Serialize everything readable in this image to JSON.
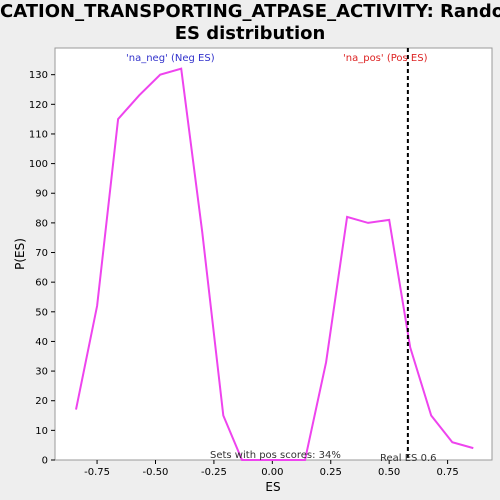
{
  "title_line1": "CATION_TRANSPORTING_ATPASE_ACTIVITY: Random",
  "title_line2": "ES distribution",
  "colors": {
    "line": "#ee44ee",
    "neg_label": "#3333cc",
    "pos_label": "#dd2222",
    "real_es_line": "#000000"
  },
  "chart_data": {
    "type": "line",
    "title": "CATION_TRANSPORTING_ATPASE_ACTIVITY: Random ES distribution",
    "xlabel": "ES",
    "ylabel": "P(ES)",
    "xlim": [
      -0.93,
      0.94
    ],
    "ylim": [
      0,
      139
    ],
    "x_ticks": [
      -0.75,
      -0.5,
      -0.25,
      0.0,
      0.25,
      0.5,
      0.75
    ],
    "x_tick_labels": [
      "-0.75",
      "-0.50",
      "-0.25",
      "0.00",
      "0.25",
      "0.50",
      "0.75"
    ],
    "y_ticks": [
      0,
      10,
      20,
      30,
      40,
      50,
      60,
      70,
      80,
      90,
      100,
      110,
      120,
      130
    ],
    "y_tick_labels": [
      "0",
      "10",
      "20",
      "30",
      "40",
      "50",
      "60",
      "70",
      "80",
      "90",
      "100",
      "110",
      "120",
      "130"
    ],
    "grid": false,
    "series": [
      {
        "x": [
          -0.84,
          -0.75,
          -0.66,
          -0.57,
          -0.48,
          -0.39,
          -0.3,
          -0.21,
          -0.13,
          -0.04,
          0.05,
          0.14,
          0.23,
          0.32,
          0.41,
          0.5,
          0.59,
          0.68,
          0.77,
          0.86
        ],
        "y": [
          17,
          52,
          115,
          123,
          130,
          132,
          77,
          15,
          0,
          0,
          0,
          0,
          33,
          82,
          80,
          81,
          38,
          15,
          6,
          4
        ]
      }
    ],
    "real_es": 0.58,
    "annotations": {
      "neg_label": "'na_neg' (Neg ES)",
      "pos_label": "'na_pos' (Pos ES)",
      "sets_with_pos": "Sets with pos scores: 34%",
      "real_es_label": "Real ES 0.6"
    }
  }
}
